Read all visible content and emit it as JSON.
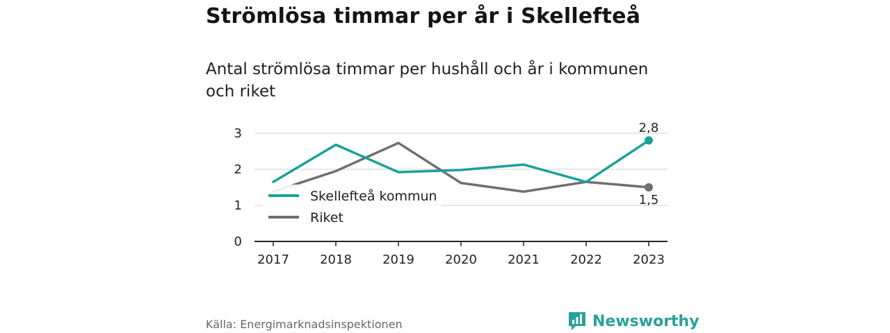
{
  "header": {
    "title": "Strömlösa timmar per år i Skellefteå",
    "subtitle": "Antal strömlösa timmar per hushåll och år i kommunen och riket"
  },
  "footer": {
    "source": "Källa: Energimarknadsinspektionen",
    "brand": "Newsworthy",
    "brand_icon": "bar-chart-speech-bubble-icon"
  },
  "colors": {
    "skelleftea": "#1aa198",
    "riket": "#6e6e75",
    "grid": "#d9d9d9",
    "axis": "#222222"
  },
  "chart_data": {
    "type": "line",
    "categories": [
      "2017",
      "2018",
      "2019",
      "2020",
      "2021",
      "2022",
      "2023"
    ],
    "series": [
      {
        "name": "Skellefteå kommun",
        "values": [
          1.65,
          2.68,
          1.92,
          1.98,
          2.13,
          1.65,
          2.8
        ]
      },
      {
        "name": "Riket",
        "values": [
          1.38,
          1.95,
          2.73,
          1.62,
          1.38,
          1.65,
          1.5
        ]
      }
    ],
    "y_ticks": [
      "0",
      "1",
      "2",
      "3"
    ],
    "ylim": [
      0,
      3
    ],
    "end_labels": [
      "2,8",
      "1,5"
    ],
    "grid": true,
    "legend": "bottom-left inside plot"
  }
}
